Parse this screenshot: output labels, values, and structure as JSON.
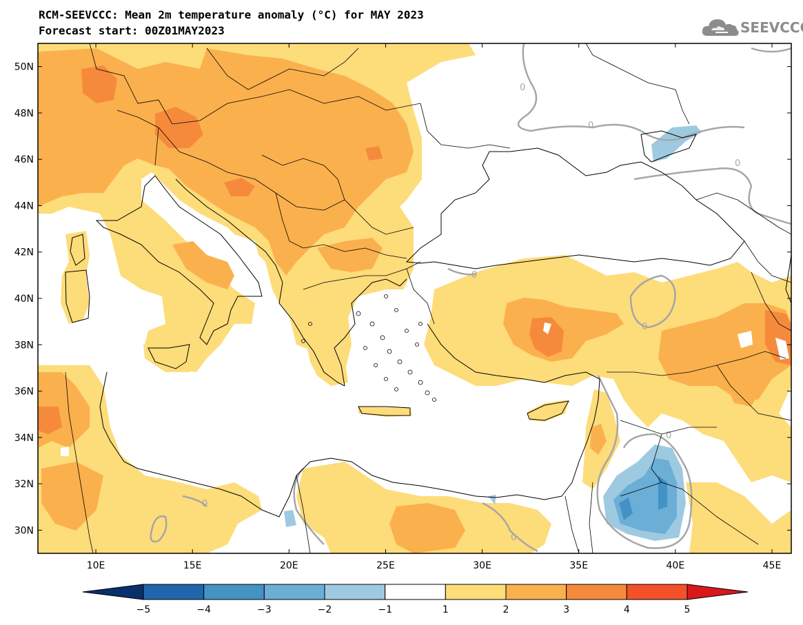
{
  "header": {
    "title": "RCM-SEEVCCC: Mean 2m temperature anomaly (°C) for MAY 2023",
    "subtitle": "Forecast start: 00Z01MAY2023",
    "logo_text": "SEEVCCC"
  },
  "map": {
    "lon_range": [
      7,
      46
    ],
    "lat_range": [
      29,
      51
    ],
    "lat_ticks": [
      {
        "value": 30,
        "label": "30N"
      },
      {
        "value": 32,
        "label": "32N"
      },
      {
        "value": 34,
        "label": "34N"
      },
      {
        "value": 36,
        "label": "36N"
      },
      {
        "value": 38,
        "label": "38N"
      },
      {
        "value": 40,
        "label": "40N"
      },
      {
        "value": 42,
        "label": "42N"
      },
      {
        "value": 44,
        "label": "44N"
      },
      {
        "value": 46,
        "label": "46N"
      },
      {
        "value": 48,
        "label": "48N"
      },
      {
        "value": 50,
        "label": "50N"
      }
    ],
    "lon_ticks": [
      {
        "value": 10,
        "label": "10E"
      },
      {
        "value": 15,
        "label": "15E"
      },
      {
        "value": 20,
        "label": "20E"
      },
      {
        "value": 25,
        "label": "25E"
      },
      {
        "value": 30,
        "label": "30E"
      },
      {
        "value": 35,
        "label": "35E"
      },
      {
        "value": 40,
        "label": "40E"
      },
      {
        "value": 45,
        "label": "45E"
      }
    ],
    "contour_label": "0",
    "colors": {
      "anom_1_2": "#fddc7a",
      "anom_2_3": "#fbb04e",
      "anom_3_4": "#f68a3c",
      "anom_m1_m2": "#9ecae1",
      "anom_m2_m3": "#6baed6",
      "anom_m3_m4": "#4292c6",
      "contour": "#a6a6a6"
    }
  },
  "colorbar": {
    "levels": [
      "−5",
      "−4",
      "−3",
      "−2",
      "−1",
      "1",
      "2",
      "3",
      "4",
      "5"
    ],
    "colors": [
      "#08306b",
      "#2166ac",
      "#4393c3",
      "#6baed6",
      "#9ecae1",
      "#ffffff",
      "#fddc7a",
      "#fbb04e",
      "#f68a3c",
      "#f4512a",
      "#d7191c"
    ]
  }
}
